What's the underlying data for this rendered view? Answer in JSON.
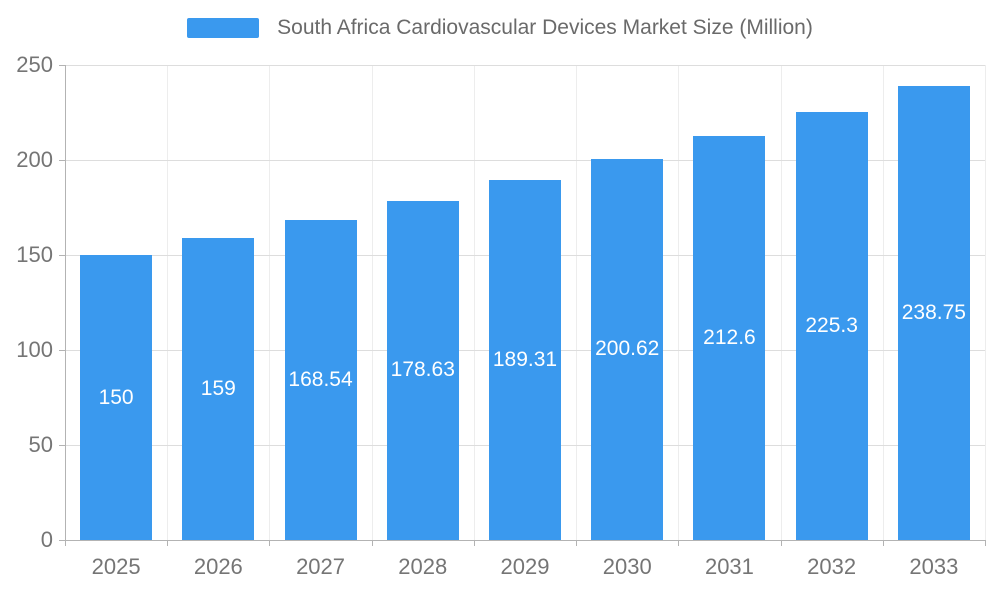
{
  "chart_data": {
    "type": "bar",
    "title": "South Africa Cardiovascular Devices Market Size (Million)",
    "categories": [
      "2025",
      "2026",
      "2027",
      "2028",
      "2029",
      "2030",
      "2031",
      "2032",
      "2033"
    ],
    "values": [
      150,
      159,
      168.54,
      178.63,
      189.31,
      200.62,
      212.6,
      225.3,
      238.75
    ],
    "value_labels": [
      "150",
      "159",
      "168.54",
      "178.63",
      "189.31",
      "200.62",
      "212.6",
      "225.3",
      "238.75"
    ],
    "xlabel": "",
    "ylabel": "",
    "ylim": [
      0,
      250
    ],
    "yticks": [
      0,
      50,
      100,
      150,
      200,
      250
    ],
    "grid": true,
    "legend_position": "top",
    "bar_color": "#3A99EE",
    "bar_label_color": "#FFFFFF",
    "title_color": "#6A6A6A",
    "axis_text_color": "#757575",
    "grid_color": "#DDDDDD",
    "axis_line_color": "#B3B3B3"
  }
}
